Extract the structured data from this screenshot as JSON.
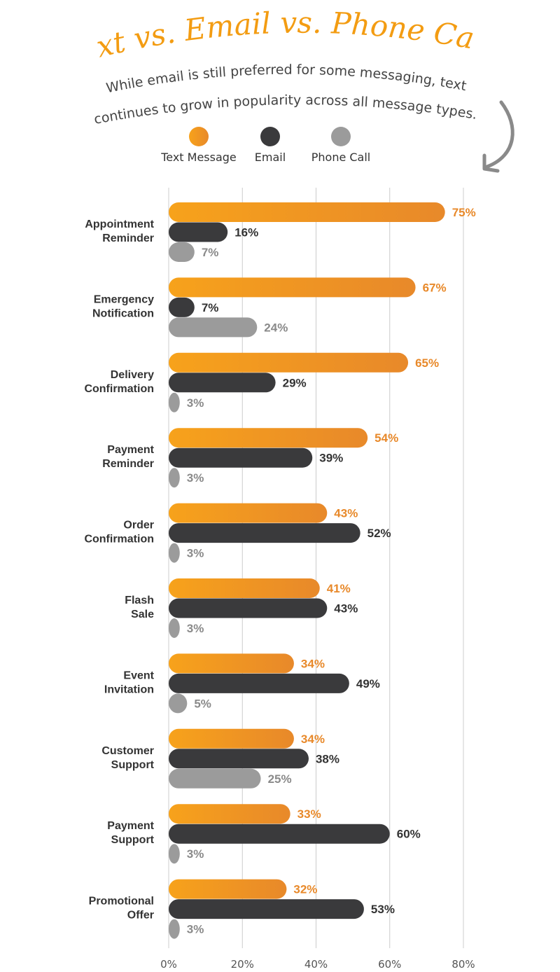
{
  "title": "Text vs. Email vs. Phone Calls",
  "subtitle_line1": "While email is still preferred for some messaging, text",
  "subtitle_line2": "continues to grow in popularity across all message types.",
  "colors": {
    "text_start": "#f7a21b",
    "text_end": "#e8892a",
    "email": "#3a3a3c",
    "phone": "#9b9b9b",
    "text_label": "#e8892a",
    "email_label": "#333333",
    "phone_label": "#8a8a8a",
    "title": "#f39c12",
    "arrow": "#8a8a8a"
  },
  "chart_data": {
    "type": "bar",
    "orientation": "horizontal",
    "categories": [
      [
        "Appointment",
        "Reminder"
      ],
      [
        "Emergency",
        "Notification"
      ],
      [
        "Delivery",
        "Confirmation"
      ],
      [
        "Payment",
        "Reminder"
      ],
      [
        "Order",
        "Confirmation"
      ],
      [
        "Flash",
        "Sale"
      ],
      [
        "Event",
        "Invitation"
      ],
      [
        "Customer",
        "Support"
      ],
      [
        "Payment",
        "Support"
      ],
      [
        "Promotional",
        "Offer"
      ]
    ],
    "series": [
      {
        "name": "Text Message",
        "values": [
          75,
          67,
          65,
          54,
          43,
          41,
          34,
          34,
          33,
          32
        ],
        "labels": [
          "75%",
          "67%",
          "65%",
          "54%",
          "43%",
          "41%",
          "34%",
          "34%",
          "33%",
          "32%"
        ]
      },
      {
        "name": "Email",
        "values": [
          16,
          7,
          29,
          39,
          52,
          43,
          49,
          38,
          60,
          53
        ],
        "labels": [
          "16%",
          "7%",
          "29%",
          "39%",
          "52%",
          "43%",
          "49%",
          "38%",
          "60%",
          "53%"
        ]
      },
      {
        "name": "Phone Call",
        "values": [
          7,
          24,
          3,
          3,
          3,
          3,
          5,
          25,
          3,
          3
        ],
        "labels": [
          "7%",
          "24%",
          "3%",
          "3%",
          "3%",
          "3%",
          "5%",
          "25%",
          "3%",
          "3%"
        ]
      }
    ],
    "xlim": [
      0,
      80
    ],
    "xticks": [
      0,
      20,
      40,
      60,
      80
    ],
    "xtick_labels": [
      "0%",
      "20%",
      "40%",
      "60%",
      "80%"
    ],
    "grid": true,
    "legend_position": "top"
  }
}
